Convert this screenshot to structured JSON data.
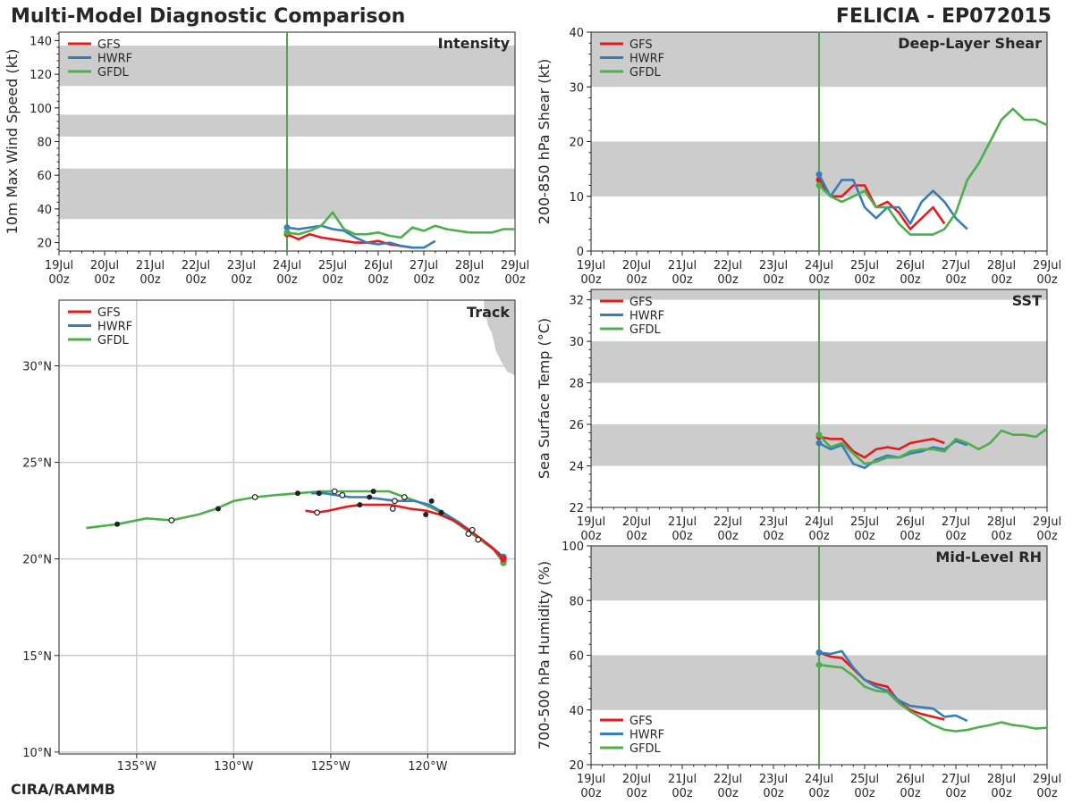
{
  "header": {
    "title": "Multi-Model Diagnostic Comparison",
    "storm": "FELICIA - EP072015"
  },
  "footer": {
    "credit": "CIRA/RAMMB"
  },
  "colors": {
    "GFS": "#e41a1c",
    "HWRF": "#377eb8",
    "GFDL": "#4daf4a",
    "band": "#cccccc",
    "init_line": "#5a9e5a"
  },
  "chart_data": [
    {
      "id": "intensity",
      "type": "line",
      "title": "Intensity",
      "ylabel": "10m Max Wind Speed (kt)",
      "ylim": [
        15,
        145
      ],
      "yticks": [
        20,
        40,
        60,
        80,
        100,
        120,
        140
      ],
      "xlim": [
        0,
        10
      ],
      "xticks": [
        "19Jul\n00z",
        "20Jul\n00z",
        "21Jul\n00z",
        "22Jul\n00z",
        "23Jul\n00z",
        "24Jul\n00z",
        "25Jul\n00z",
        "26Jul\n00z",
        "27Jul\n00z",
        "28Jul\n00z",
        "29Jul\n00z"
      ],
      "init_x": 5,
      "bands": [
        [
          34,
          64
        ],
        [
          83,
          96
        ],
        [
          113,
          137
        ]
      ],
      "legend": [
        "GFS",
        "HWRF",
        "GFDL"
      ],
      "legend_pos": "top-left",
      "series": [
        {
          "name": "GFS",
          "x": [
            5,
            5.25,
            5.5,
            5.75,
            6,
            6.25,
            6.5,
            6.75,
            7,
            7.25,
            7.5,
            7.75
          ],
          "y": [
            25,
            22,
            25,
            23,
            22,
            21,
            20,
            20,
            21,
            19,
            18,
            17
          ]
        },
        {
          "name": "HWRF",
          "x": [
            5,
            5.25,
            5.5,
            5.75,
            6,
            6.25,
            6.5,
            6.75,
            7,
            7.25,
            7.5,
            7.75,
            8,
            8.25
          ],
          "y": [
            29,
            28,
            29,
            30,
            28,
            27,
            23,
            20,
            19,
            20,
            18,
            17,
            17,
            21
          ]
        },
        {
          "name": "GFDL",
          "x": [
            5,
            5.25,
            5.5,
            5.75,
            6,
            6.25,
            6.5,
            6.75,
            7,
            7.25,
            7.5,
            7.75,
            8,
            8.25,
            8.5,
            8.75,
            9,
            9.25,
            9.5,
            9.75,
            10
          ],
          "y": [
            26,
            25,
            27,
            30,
            38,
            28,
            25,
            25,
            26,
            24,
            23,
            29,
            27,
            30,
            28,
            27,
            26,
            26,
            26,
            28,
            28
          ]
        }
      ]
    },
    {
      "id": "shear",
      "type": "line",
      "title": "Deep-Layer Shear",
      "ylabel": "200-850 hPa Shear (kt)",
      "ylim": [
        0,
        40
      ],
      "yticks": [
        0,
        10,
        20,
        30,
        40
      ],
      "xlim": [
        0,
        10
      ],
      "xticks": [
        "19Jul\n00z",
        "20Jul\n00z",
        "21Jul\n00z",
        "22Jul\n00z",
        "23Jul\n00z",
        "24Jul\n00z",
        "25Jul\n00z",
        "26Jul\n00z",
        "27Jul\n00z",
        "28Jul\n00z",
        "29Jul\n00z"
      ],
      "init_x": 5,
      "bands": [
        [
          10,
          20
        ],
        [
          30,
          40
        ]
      ],
      "legend": [
        "GFS",
        "HWRF",
        "GFDL"
      ],
      "legend_pos": "top-left",
      "series": [
        {
          "name": "GFS",
          "x": [
            5,
            5.25,
            5.5,
            5.75,
            6,
            6.25,
            6.5,
            6.75,
            7,
            7.25,
            7.5,
            7.75
          ],
          "y": [
            13,
            10,
            10,
            12,
            12,
            8,
            9,
            7,
            4,
            6,
            8,
            5
          ]
        },
        {
          "name": "HWRF",
          "x": [
            5,
            5.25,
            5.5,
            5.75,
            6,
            6.25,
            6.5,
            6.75,
            7,
            7.25,
            7.5,
            7.75,
            8,
            8.25
          ],
          "y": [
            14,
            10,
            13,
            13,
            8,
            6,
            8,
            8,
            5,
            9,
            11,
            9,
            6,
            4
          ]
        },
        {
          "name": "GFDL",
          "x": [
            5,
            5.25,
            5.5,
            5.75,
            6,
            6.25,
            6.5,
            6.75,
            7,
            7.25,
            7.5,
            7.75,
            8,
            8.25,
            8.5,
            8.75,
            9,
            9.25,
            9.5,
            9.75,
            10
          ],
          "y": [
            12,
            10,
            9,
            10,
            11,
            8,
            8,
            5,
            3,
            3,
            3,
            4,
            7,
            13,
            16,
            20,
            24,
            26,
            24,
            24,
            23
          ]
        }
      ]
    },
    {
      "id": "sst",
      "type": "line",
      "title": "SST",
      "ylabel": "Sea Surface Temp (°C)",
      "ylim": [
        22,
        32.5
      ],
      "yticks": [
        22,
        24,
        26,
        28,
        30,
        32
      ],
      "xlim": [
        0,
        10
      ],
      "xticks": [
        "19Jul\n00z",
        "20Jul\n00z",
        "21Jul\n00z",
        "22Jul\n00z",
        "23Jul\n00z",
        "24Jul\n00z",
        "25Jul\n00z",
        "26Jul\n00z",
        "27Jul\n00z",
        "28Jul\n00z",
        "29Jul\n00z"
      ],
      "init_x": 5,
      "bands": [
        [
          24,
          26
        ],
        [
          28,
          30
        ],
        [
          32,
          32.5
        ]
      ],
      "legend": [
        "GFS",
        "HWRF",
        "GFDL"
      ],
      "legend_pos": "top-left",
      "series": [
        {
          "name": "GFS",
          "x": [
            5,
            5.25,
            5.5,
            5.75,
            6,
            6.25,
            6.5,
            6.75,
            7,
            7.25,
            7.5,
            7.75
          ],
          "y": [
            25.4,
            25.3,
            25.3,
            24.7,
            24.4,
            24.8,
            24.9,
            24.8,
            25.1,
            25.2,
            25.3,
            25.1
          ]
        },
        {
          "name": "HWRF",
          "x": [
            5,
            5.25,
            5.5,
            5.75,
            6,
            6.25,
            6.5,
            6.75,
            7,
            7.25,
            7.5,
            7.75,
            8,
            8.25
          ],
          "y": [
            25.1,
            24.8,
            25.0,
            24.1,
            23.9,
            24.3,
            24.5,
            24.4,
            24.6,
            24.7,
            24.9,
            24.8,
            25.2,
            25.0
          ]
        },
        {
          "name": "GFDL",
          "x": [
            5,
            5.25,
            5.5,
            5.75,
            6,
            6.25,
            6.5,
            6.75,
            7,
            7.25,
            7.5,
            7.75,
            8,
            8.25,
            8.5,
            8.75,
            9,
            9.25,
            9.5,
            9.75,
            10
          ],
          "y": [
            25.5,
            24.9,
            25.1,
            24.6,
            24.1,
            24.2,
            24.4,
            24.4,
            24.7,
            24.8,
            24.8,
            24.7,
            25.3,
            25.1,
            24.8,
            25.1,
            25.7,
            25.5,
            25.5,
            25.4,
            25.8
          ]
        }
      ]
    },
    {
      "id": "rh",
      "type": "line",
      "title": "Mid-Level RH",
      "ylabel": "700-500 hPa Humidity (%)",
      "ylim": [
        20,
        100
      ],
      "yticks": [
        20,
        40,
        60,
        80,
        100
      ],
      "xlim": [
        0,
        10
      ],
      "xticks": [
        "19Jul\n00z",
        "20Jul\n00z",
        "21Jul\n00z",
        "22Jul\n00z",
        "23Jul\n00z",
        "24Jul\n00z",
        "25Jul\n00z",
        "26Jul\n00z",
        "27Jul\n00z",
        "28Jul\n00z",
        "29Jul\n00z"
      ],
      "init_x": 5,
      "bands": [
        [
          40,
          60
        ],
        [
          80,
          100
        ]
      ],
      "legend": [
        "GFS",
        "HWRF",
        "GFDL"
      ],
      "legend_pos": "bottom-left",
      "series": [
        {
          "name": "GFS",
          "x": [
            5,
            5.25,
            5.5,
            5.75,
            6,
            6.25,
            6.5,
            6.75,
            7,
            7.25,
            7.5,
            7.75
          ],
          "y": [
            61,
            59.5,
            59,
            55,
            51,
            49.5,
            48.5,
            43,
            40,
            38.5,
            37.5,
            36.5
          ]
        },
        {
          "name": "HWRF",
          "x": [
            5,
            5.25,
            5.5,
            5.75,
            6,
            6.25,
            6.5,
            6.75,
            7,
            7.25,
            7.5,
            7.75,
            8,
            8.25
          ],
          "y": [
            61,
            60.5,
            61.5,
            55.5,
            51,
            48.5,
            47,
            43.5,
            41.5,
            41,
            40.5,
            37.5,
            38,
            36
          ]
        },
        {
          "name": "GFDL",
          "x": [
            5,
            5.25,
            5.5,
            5.75,
            6,
            6.25,
            6.5,
            6.75,
            7,
            7.25,
            7.5,
            7.75,
            8,
            8.25,
            8.5,
            8.75,
            9,
            9.25,
            9.5,
            9.75,
            10
          ],
          "y": [
            56.5,
            56,
            55.5,
            52.5,
            48.5,
            47,
            46.5,
            42.5,
            39.5,
            37,
            34.5,
            32.8,
            32.2,
            32.7,
            33.7,
            34.5,
            35.5,
            34.5,
            34,
            33.2,
            33.5
          ]
        }
      ]
    },
    {
      "id": "track",
      "type": "line",
      "title": "Track",
      "xlabel": "",
      "ylabel": "",
      "xlim": [
        -139,
        -115.5
      ],
      "ylim": [
        9.9,
        33.4
      ],
      "xticks": [
        {
          "v": -135,
          "label": "135°W"
        },
        {
          "v": -130,
          "label": "130°W"
        },
        {
          "v": -125,
          "label": "125°W"
        },
        {
          "v": -120,
          "label": "120°W"
        }
      ],
      "yticks": [
        {
          "v": 10,
          "label": "10°N"
        },
        {
          "v": 15,
          "label": "15°N"
        },
        {
          "v": 20,
          "label": "20°N"
        },
        {
          "v": 25,
          "label": "25°N"
        },
        {
          "v": 30,
          "label": "30°N"
        }
      ],
      "grid": true,
      "legend": [
        "GFS",
        "HWRF",
        "GFDL"
      ],
      "legend_pos": "top-left",
      "series": [
        {
          "name": "GFS",
          "lon": [
            -116.1,
            -116.6,
            -117.2,
            -117.9,
            -118.7,
            -119.4,
            -120.1,
            -120.9,
            -121.9,
            -122.8,
            -123.5,
            -124.2,
            -125.1,
            -125.7,
            -126.3
          ],
          "lat": [
            20.0,
            20.5,
            21.0,
            21.5,
            22.0,
            22.3,
            22.5,
            22.6,
            22.8,
            22.8,
            22.8,
            22.7,
            22.5,
            22.4,
            22.5
          ]
        },
        {
          "name": "HWRF",
          "lon": [
            -116.1,
            -116.8,
            -117.6,
            -118.4,
            -119.2,
            -119.9,
            -120.7,
            -121.6,
            -122.4,
            -123.2,
            -124.0,
            -124.7,
            -125.3,
            -125.7,
            -126.0
          ],
          "lat": [
            20.1,
            20.7,
            21.3,
            21.9,
            22.4,
            22.8,
            23.0,
            23.0,
            23.1,
            23.2,
            23.2,
            23.3,
            23.4,
            23.4,
            23.4
          ]
        },
        {
          "name": "GFDL",
          "lon": [
            -116.1,
            -116.6,
            -117.3,
            -118.0,
            -118.7,
            -119.3,
            -119.9,
            -120.6,
            -121.2,
            -122.0,
            -122.8,
            -123.6,
            -124.4,
            -124.8,
            -125.5,
            -126.7,
            -127.9,
            -128.9,
            -130.0,
            -130.9,
            -131.8,
            -133.2,
            -134.5,
            -136.0,
            -137.6
          ],
          "lat": [
            19.8,
            20.5,
            21.0,
            21.5,
            22.0,
            22.4,
            22.7,
            23.0,
            23.2,
            23.5,
            23.5,
            23.5,
            23.5,
            23.5,
            23.5,
            23.4,
            23.3,
            23.2,
            23.0,
            22.6,
            22.3,
            22.0,
            22.1,
            21.8,
            21.6
          ]
        }
      ],
      "markers_filled": [
        {
          "lon": -125.6,
          "lat": 23.4
        },
        {
          "lon": -122.8,
          "lat": 23.5
        },
        {
          "lon": -123.0,
          "lat": 23.2
        },
        {
          "lon": -119.8,
          "lat": 23.0
        },
        {
          "lon": -119.3,
          "lat": 22.4
        },
        {
          "lon": -120.1,
          "lat": 22.3
        },
        {
          "lon": -123.5,
          "lat": 22.8
        },
        {
          "lon": -126.7,
          "lat": 23.4
        },
        {
          "lon": -130.8,
          "lat": 22.6
        },
        {
          "lon": -136.0,
          "lat": 21.8
        }
      ],
      "markers_open": [
        {
          "lon": -124.8,
          "lat": 23.5
        },
        {
          "lon": -124.4,
          "lat": 23.3
        },
        {
          "lon": -121.2,
          "lat": 23.2
        },
        {
          "lon": -121.7,
          "lat": 23.0
        },
        {
          "lon": -121.8,
          "lat": 22.6
        },
        {
          "lon": -125.7,
          "lat": 22.4
        },
        {
          "lon": -117.7,
          "lat": 21.5
        },
        {
          "lon": -117.4,
          "lat": 21.0
        },
        {
          "lon": -117.9,
          "lat": 21.3
        },
        {
          "lon": -128.9,
          "lat": 23.2
        },
        {
          "lon": -133.2,
          "lat": 22.0
        }
      ],
      "start_markers": [
        "GFS",
        "HWRF",
        "GFDL"
      ]
    }
  ]
}
